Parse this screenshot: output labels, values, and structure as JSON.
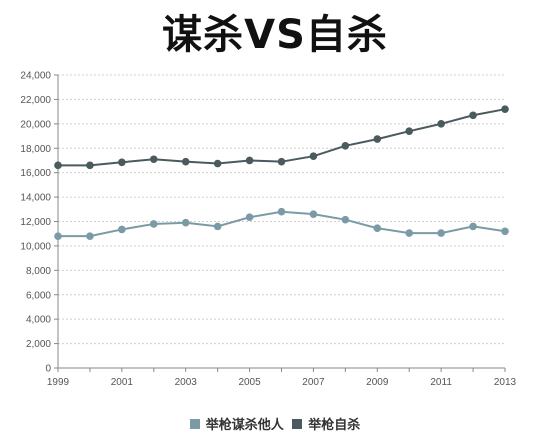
{
  "chart_data": {
    "type": "line",
    "title": "谋杀VS自杀",
    "xlabel": "",
    "ylabel": "",
    "x": [
      1999,
      2000,
      2001,
      2002,
      2003,
      2004,
      2005,
      2006,
      2007,
      2008,
      2009,
      2010,
      2011,
      2012,
      2013
    ],
    "x_tick_labels": [
      "1999",
      "2001",
      "2003",
      "2005",
      "2007",
      "2009",
      "2011",
      "2013"
    ],
    "y_tick_labels": [
      "0",
      "2,000",
      "4,000",
      "6,000",
      "8,000",
      "10,000",
      "12,000",
      "14,000",
      "16,000",
      "18,000",
      "20,000",
      "22,000",
      "24,000"
    ],
    "ylim": [
      0,
      24000
    ],
    "xlim": [
      1999,
      2013
    ],
    "grid": true,
    "legend_position": "bottom",
    "series": [
      {
        "name": "举枪谋杀他人",
        "color": "#7a9ba5",
        "values": [
          10800,
          10800,
          11350,
          11800,
          11900,
          11600,
          12350,
          12800,
          12600,
          12150,
          11450,
          11050,
          11050,
          11600,
          11200
        ]
      },
      {
        "name": "举枪自杀",
        "color": "#4a5a5e",
        "values": [
          16600,
          16600,
          16850,
          17100,
          16900,
          16750,
          17000,
          16900,
          17350,
          18200,
          18750,
          19400,
          20000,
          20700,
          21200
        ]
      }
    ]
  }
}
